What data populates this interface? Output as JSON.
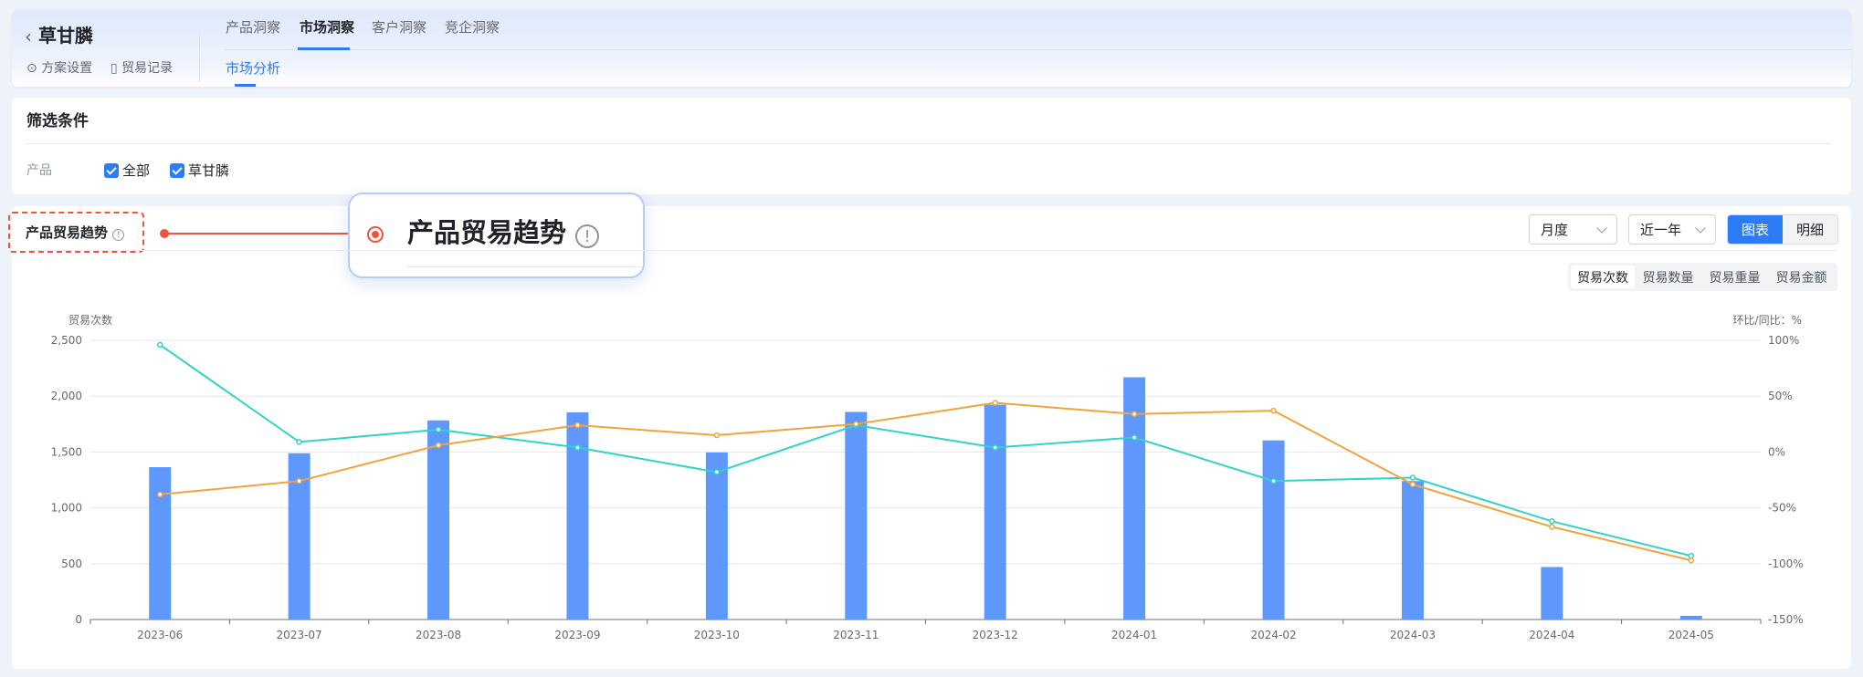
{
  "header": {
    "title": "草甘膦",
    "links": [
      "方案设置",
      "贸易记录"
    ],
    "tabs": [
      "产品洞察",
      "市场洞察",
      "客户洞察",
      "竞企洞察"
    ],
    "active_tab": "市场洞察",
    "subtab": "市场分析"
  },
  "filter": {
    "title": "筛选条件",
    "label": "产品",
    "options": [
      "全部",
      "草甘膦"
    ]
  },
  "section": {
    "title": "产品贸易趋势",
    "callout_title": "产品贸易趋势",
    "period_select": "月度",
    "range_select": "近一年",
    "view_toggle": [
      "图表",
      "明细"
    ],
    "active_view": "图表",
    "metric_tabs": [
      "贸易次数",
      "贸易数量",
      "贸易重量",
      "贸易金额"
    ],
    "active_metric": "贸易次数"
  },
  "colors": {
    "accent": "#2b7cf6",
    "bar": "#5e98fc",
    "line_cyan": "#2fd3c8",
    "line_orange": "#f2a33c",
    "annotation": "#f0533c"
  },
  "chart_data": {
    "type": "bar+line",
    "ylabel_left": "贸易次数",
    "ylabel_right": "环比/同比：%",
    "categories": [
      "2023-06",
      "2023-07",
      "2023-08",
      "2023-09",
      "2023-10",
      "2023-11",
      "2023-12",
      "2024-01",
      "2024-02",
      "2024-03",
      "2024-04",
      "2024-05"
    ],
    "ylim_left": [
      0,
      2500
    ],
    "yticks_left": [
      "0",
      "500",
      "1,000",
      "1,500",
      "2,000",
      "2,500"
    ],
    "ylim_right": [
      -150,
      100
    ],
    "yticks_right": [
      "-150%",
      "-100%",
      "-50%",
      "0%",
      "50%",
      "100%"
    ],
    "grid": true,
    "bars": [
      1364,
      1489,
      1783,
      1855,
      1496,
      1859,
      1923,
      2169,
      1604,
      1240,
      470,
      33
    ],
    "lines": [
      {
        "color": "#2fd3c8",
        "values": [
          96,
          9,
          20,
          4,
          -18,
          24,
          4,
          13,
          -26,
          -23,
          -62,
          -93
        ]
      },
      {
        "color": "#f2a33c",
        "values": [
          -38,
          -26,
          6,
          24,
          15,
          25,
          44,
          34,
          37,
          -29,
          -67,
          -97
        ]
      }
    ]
  }
}
